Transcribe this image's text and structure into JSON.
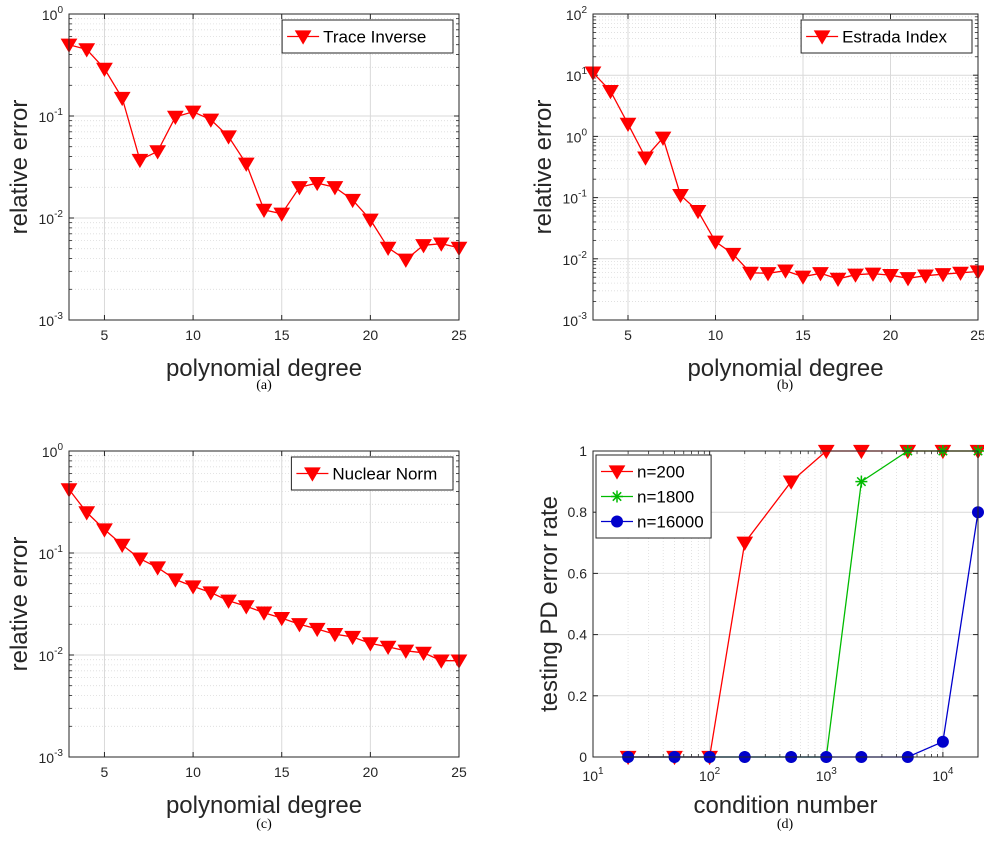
{
  "chart_data": [
    {
      "type": "line",
      "panel": "a",
      "caption": "(a)",
      "xlabel": "polynomial degree",
      "ylabel": "relative error",
      "xlim": [
        3,
        25
      ],
      "ylim": [
        0.001,
        1
      ],
      "yscale": "log",
      "xticks": [
        "5",
        "10",
        "15",
        "20",
        "25"
      ],
      "grid": true,
      "legend_position": "top-right",
      "series": [
        {
          "name": "Trace Inverse",
          "color": "#ff0000",
          "marker": "triangle-down",
          "x": [
            3,
            4,
            5,
            6,
            7,
            8,
            9,
            10,
            11,
            12,
            13,
            14,
            15,
            16,
            17,
            18,
            19,
            20,
            21,
            22,
            23,
            24,
            25
          ],
          "y": [
            0.5,
            0.45,
            0.29,
            0.15,
            0.037,
            0.045,
            0.098,
            0.11,
            0.092,
            0.063,
            0.034,
            0.012,
            0.011,
            0.02,
            0.022,
            0.02,
            0.015,
            0.0096,
            0.0051,
            0.0039,
            0.0054,
            0.0056,
            0.0051
          ]
        }
      ]
    },
    {
      "type": "line",
      "panel": "b",
      "caption": "(b)",
      "xlabel": "polynomial degree",
      "ylabel": "relative error",
      "xlim": [
        3,
        25
      ],
      "ylim": [
        0.001,
        100
      ],
      "yscale": "log",
      "xticks": [
        "5",
        "10",
        "15",
        "20",
        "25"
      ],
      "grid": true,
      "legend_position": "top-right",
      "series": [
        {
          "name": "Estrada Index",
          "color": "#ff0000",
          "marker": "triangle-down",
          "x": [
            3,
            4,
            5,
            6,
            7,
            8,
            9,
            10,
            11,
            12,
            13,
            14,
            15,
            16,
            17,
            18,
            19,
            20,
            21,
            22,
            23,
            24,
            25
          ],
          "y": [
            11,
            5.5,
            1.6,
            0.45,
            0.95,
            0.11,
            0.06,
            0.019,
            0.012,
            0.0059,
            0.0058,
            0.0064,
            0.0051,
            0.0058,
            0.0047,
            0.0055,
            0.0057,
            0.0054,
            0.0048,
            0.0053,
            0.0056,
            0.0059,
            0.0062
          ]
        }
      ]
    },
    {
      "type": "line",
      "panel": "c",
      "caption": "(c)",
      "xlabel": "polynomial degree",
      "ylabel": "relative error",
      "xlim": [
        3,
        25
      ],
      "ylim": [
        0.001,
        1
      ],
      "yscale": "log",
      "xticks": [
        "5",
        "10",
        "15",
        "20",
        "25"
      ],
      "grid": true,
      "legend_position": "top-right",
      "series": [
        {
          "name": "Nuclear Norm",
          "color": "#ff0000",
          "marker": "triangle-down",
          "x": [
            3,
            4,
            5,
            6,
            7,
            8,
            9,
            10,
            11,
            12,
            13,
            14,
            15,
            16,
            17,
            18,
            19,
            20,
            21,
            22,
            23,
            24,
            25
          ],
          "y": [
            0.42,
            0.25,
            0.17,
            0.12,
            0.088,
            0.072,
            0.055,
            0.047,
            0.041,
            0.034,
            0.03,
            0.026,
            0.023,
            0.02,
            0.018,
            0.016,
            0.015,
            0.013,
            0.012,
            0.011,
            0.0105,
            0.0088,
            0.0088
          ]
        }
      ]
    },
    {
      "type": "line",
      "panel": "d",
      "caption": "(d)",
      "xlabel": "condition number",
      "ylabel": "testing PD error rate",
      "xlim": [
        10,
        20000
      ],
      "ylim": [
        0,
        1
      ],
      "xscale": "log",
      "yticks": [
        "0",
        "0.2",
        "0.4",
        "0.6",
        "0.8",
        "1"
      ],
      "grid": true,
      "legend_position": "top-left",
      "series": [
        {
          "name": "n=200",
          "color": "#ff0000",
          "marker": "triangle-down",
          "x": [
            20,
            50,
            100,
            200,
            500,
            1000,
            2000,
            5000,
            10000,
            20000
          ],
          "y": [
            0,
            0,
            0,
            0.7,
            0.9,
            1,
            1,
            1,
            1,
            1
          ]
        },
        {
          "name": "n=1800",
          "color": "#00bb00",
          "marker": "asterisk",
          "x": [
            20,
            50,
            100,
            200,
            500,
            1000,
            2000,
            5000,
            10000,
            20000
          ],
          "y": [
            0,
            0,
            0,
            0,
            0,
            0,
            0.9,
            1,
            1,
            1
          ]
        },
        {
          "name": "n=16000",
          "color": "#0000cc",
          "marker": "circle",
          "x": [
            20,
            50,
            100,
            200,
            500,
            1000,
            2000,
            5000,
            10000,
            20000
          ],
          "y": [
            0,
            0,
            0,
            0,
            0,
            0,
            0,
            0,
            0.05,
            0.8
          ]
        }
      ]
    }
  ]
}
